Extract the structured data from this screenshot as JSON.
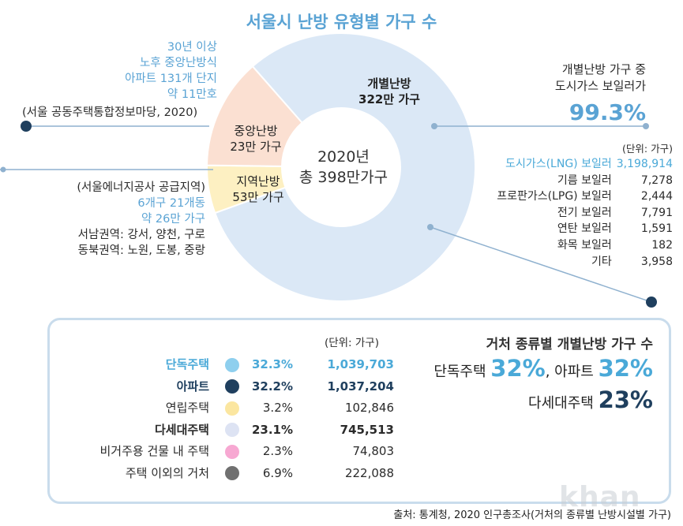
{
  "title": "서울시 난방 유형별 가구 수",
  "chart_data": {
    "type": "pie",
    "title": "서울시 난방 유형별 가구 수",
    "center_label": [
      "2020년",
      "총 398만가구"
    ],
    "slices": [
      {
        "name": "개별난방",
        "value_label": "322만 가구",
        "value": 322,
        "color": "#dbe8f6"
      },
      {
        "name": "중앙난방",
        "value_label": "23만 가구",
        "value": 23,
        "color": "#fdf0c2"
      },
      {
        "name": "지역난방",
        "value_label": "53만 가구",
        "value": 53,
        "color": "#fbe0d2"
      }
    ]
  },
  "central_note": {
    "lines": [
      "30년 이상",
      "노후 중앙난방식",
      "아파트 131개 단지",
      "약 11만호"
    ],
    "source": "(서울 공동주택통합정보마당, 2020)"
  },
  "district_note": {
    "source": "(서울에너지공사 공급지역)",
    "lines": [
      "6개구 21개동",
      "약 26만 가구"
    ],
    "areas": [
      "서남권역: 강서, 양천, 구로",
      "동북권역: 노원, 도봉, 중랑"
    ]
  },
  "individual_note": {
    "line1": "개별난방 가구 중",
    "line2": "도시가스 보일러가",
    "pct": "99.3%"
  },
  "boiler_table": {
    "unit": "(단위: 가구)",
    "rows": [
      {
        "label": "도시가스(LNG) 보일러",
        "value": "3,198,914",
        "highlight": true
      },
      {
        "label": "기름 보일러",
        "value": "7,278"
      },
      {
        "label": "프로판가스(LPG) 보일러",
        "value": "2,444"
      },
      {
        "label": "전기 보일러",
        "value": "7,791"
      },
      {
        "label": "연탄 보일러",
        "value": "1,591"
      },
      {
        "label": "화목 보일러",
        "value": "182"
      },
      {
        "label": "기타",
        "value": "3,958"
      }
    ]
  },
  "housing_table": {
    "unit": "(단위: 가구)",
    "rows": [
      {
        "label": "단독주택",
        "pct": "32.3%",
        "count": "1,039,703",
        "color": "#8ecfee",
        "style": "blue"
      },
      {
        "label": "아파트",
        "pct": "32.2%",
        "count": "1,037,204",
        "color": "#1f3f5e",
        "style": "navy"
      },
      {
        "label": "연립주택",
        "pct": "3.2%",
        "count": "102,846",
        "color": "#fbe6a0",
        "style": "plain"
      },
      {
        "label": "다세대주택",
        "pct": "23.1%",
        "count": "745,513",
        "color": "#dde3f3",
        "style": "strong"
      },
      {
        "label": "비거주용 건물 내 주택",
        "pct": "2.3%",
        "count": "74,803",
        "color": "#f7a8d2",
        "style": "plain"
      },
      {
        "label": "주택 이외의 거처",
        "pct": "6.9%",
        "count": "222,088",
        "color": "#707070",
        "style": "plain"
      }
    ]
  },
  "summary": {
    "title": "거처 종류별 개별난방 가구 수",
    "detached_label": "단독주택",
    "detached_pct": "32%",
    "apartment_label": ", 아파트",
    "apartment_pct": "32%",
    "multi_label": "다세대주택",
    "multi_pct": "23%"
  },
  "source": "출처: 통계청, 2020 인구총조사(거처의 종류별 난방시설별 가구)",
  "watermark": "khan"
}
